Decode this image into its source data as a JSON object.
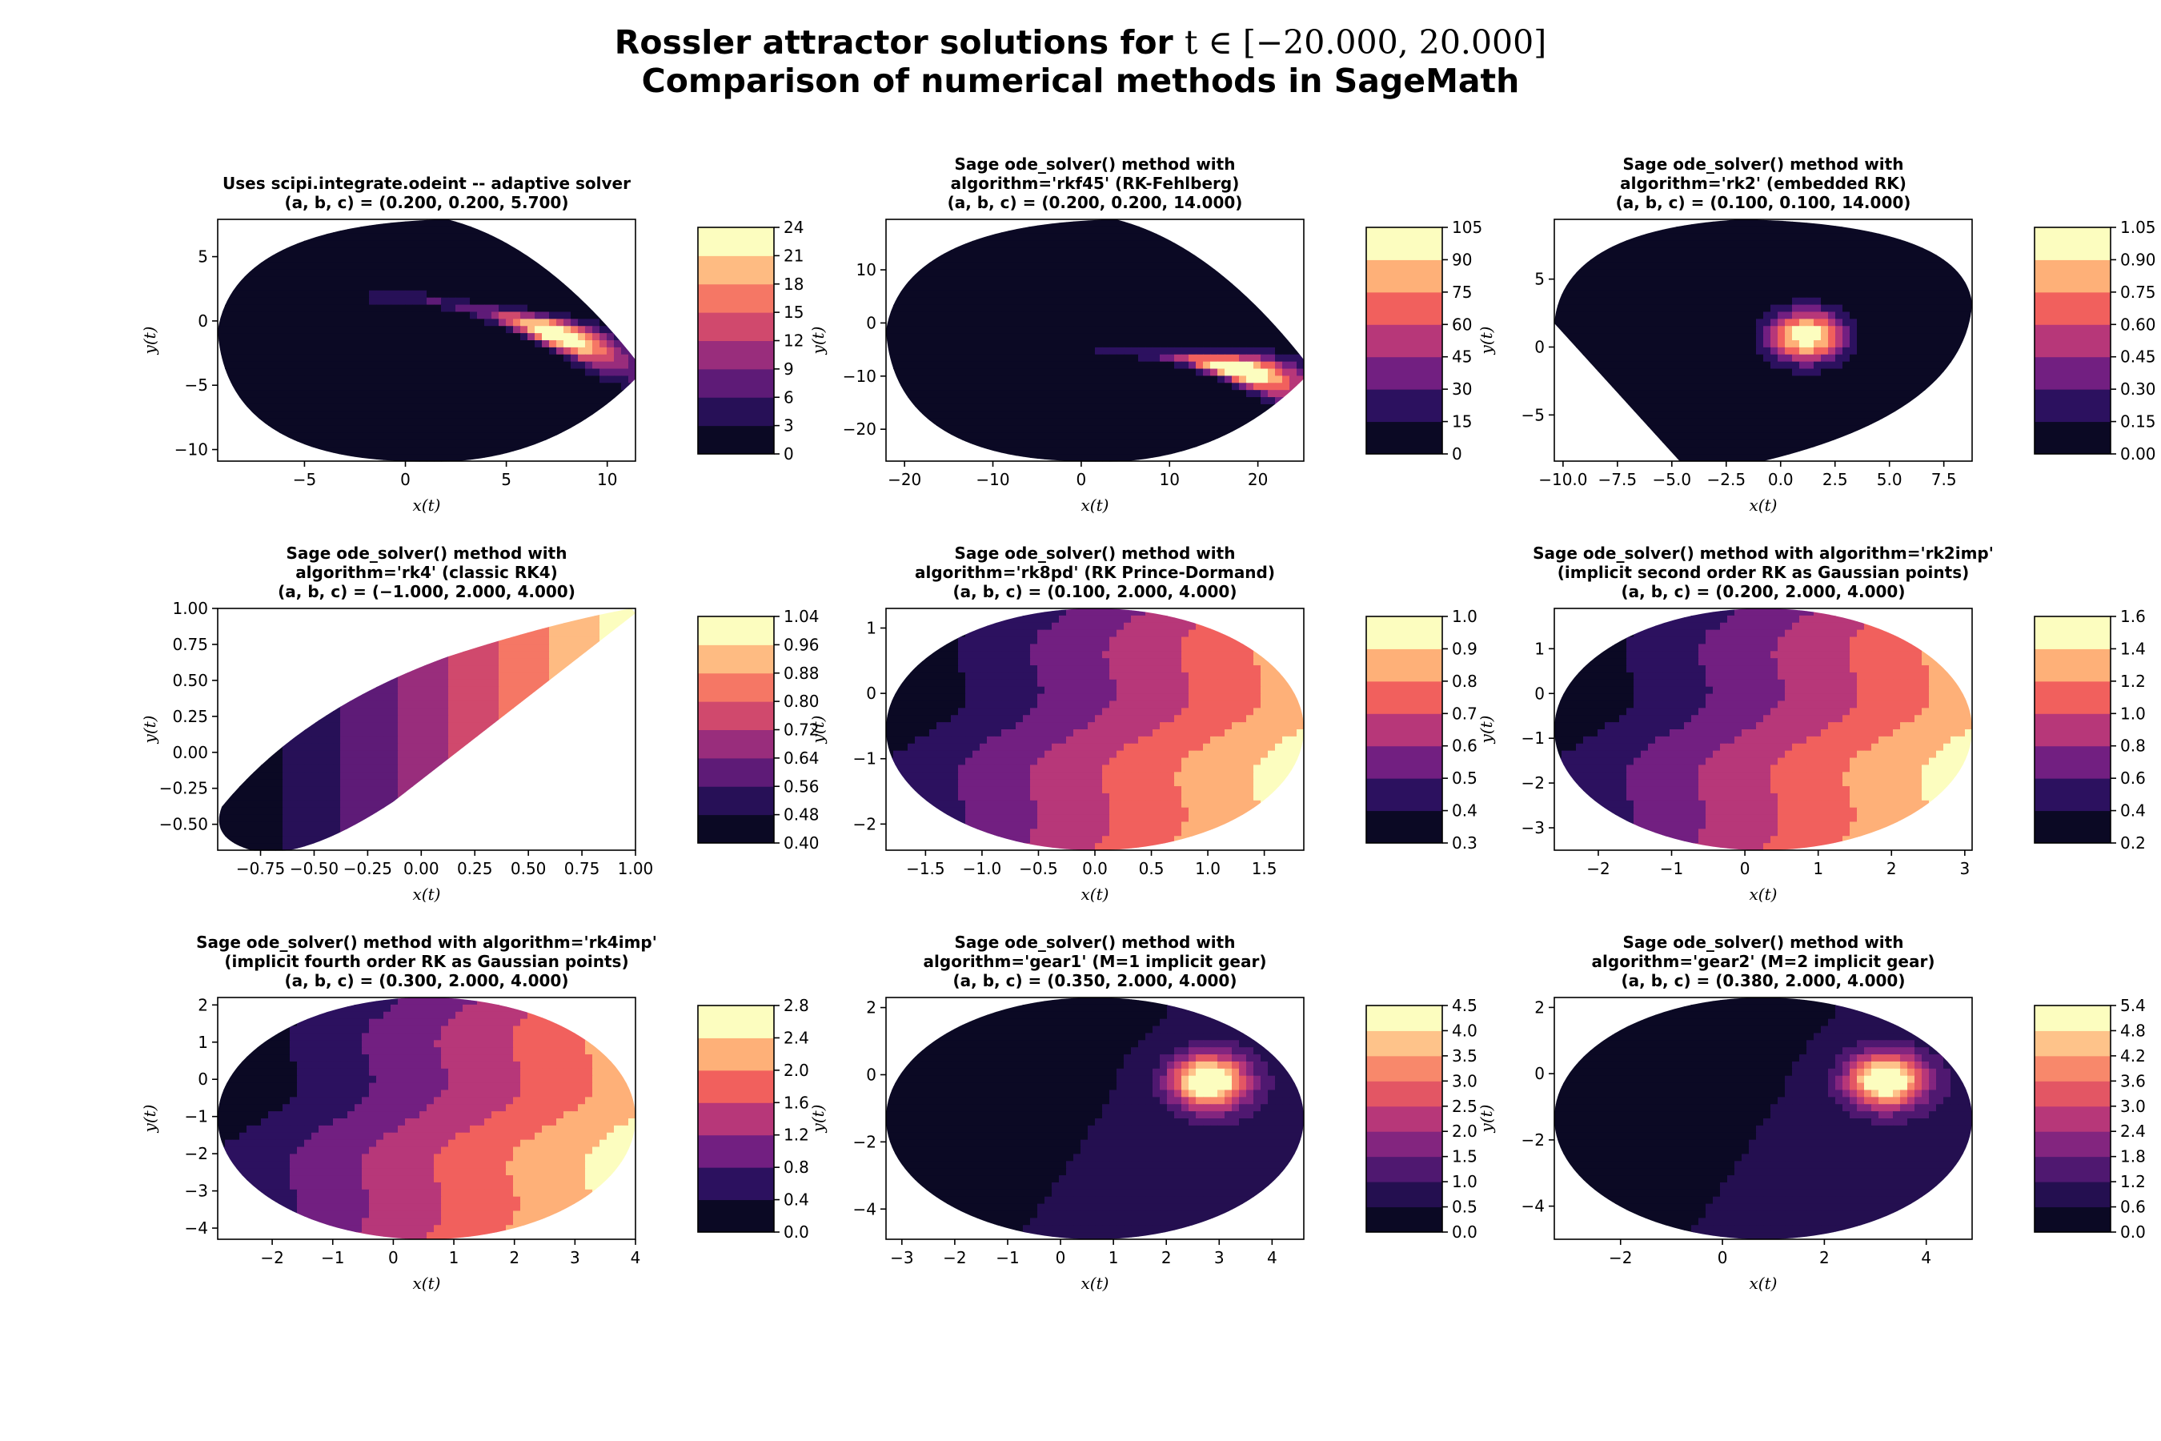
{
  "figure": {
    "title_line1_prefix": "Rossler attractor solutions for ",
    "title_line1_math": "t ∈ [−20.000, 20.000]",
    "title_line2": "Comparison of numerical methods in SageMath",
    "colormap": "magma",
    "colormap_stops": [
      "#0b0924",
      "#2c115f",
      "#721f81",
      "#b73779",
      "#f1605d",
      "#feb078",
      "#fcfdbf"
    ]
  },
  "chart_data": [
    {
      "type": "contourf",
      "title_lines": [
        "Uses scipi.integrate.odeint -- adaptive solver",
        "(a, b, c) = (0.200, 0.200, 5.700)"
      ],
      "xlabel": "x(t)",
      "ylabel": "y(t)",
      "xlim": [
        -9.3,
        11.4
      ],
      "ylim": [
        -10.9,
        7.9
      ],
      "xticks": [
        "−5",
        "0",
        "5",
        "10"
      ],
      "xtick_values": [
        -5,
        0,
        5,
        10
      ],
      "yticks": [
        "−10",
        "−5",
        "0",
        "5"
      ],
      "ytick_values": [
        -10,
        -5,
        0,
        5
      ],
      "levels": [
        0,
        3,
        6,
        9,
        12,
        15,
        18,
        21,
        24
      ],
      "colorbar_ticks": [
        "0",
        "3",
        "6",
        "9",
        "12",
        "15",
        "18",
        "21",
        "24"
      ],
      "region": "ellipse-with-right-wedge",
      "feature": {
        "kind": "ridge",
        "from": [
          -1.3,
          2.0
        ],
        "to": [
          11.4,
          -3.5
        ],
        "peak": [
          7.5,
          0.8
        ]
      }
    },
    {
      "type": "contourf",
      "title_lines": [
        "Sage ode_solver() method with",
        "algorithm='rkf45' (RK-Fehlberg)",
        "(a, b, c) = (0.200, 0.200, 14.000)"
      ],
      "xlabel": "x(t)",
      "ylabel": "y(t)",
      "xlim": [
        -22.1,
        25.2
      ],
      "ylim": [
        -26.0,
        19.5
      ],
      "xticks": [
        "−20",
        "−10",
        "0",
        "10",
        "20"
      ],
      "xtick_values": [
        -20,
        -10,
        0,
        10,
        20
      ],
      "yticks": [
        "−20",
        "−10",
        "0",
        "10"
      ],
      "ytick_values": [
        -20,
        -10,
        0,
        10
      ],
      "levels": [
        0,
        15,
        30,
        45,
        60,
        75,
        90,
        105
      ],
      "colorbar_ticks": [
        "0",
        "15",
        "30",
        "45",
        "60",
        "75",
        "90",
        "105"
      ],
      "region": "ellipse-with-right-wedge",
      "feature": {
        "kind": "ridge",
        "from": [
          2.5,
          -5.0
        ],
        "to": [
          25.2,
          -12.0
        ],
        "peak": [
          18.0,
          -7.5
        ]
      }
    },
    {
      "type": "contourf",
      "title_lines": [
        "Sage ode_solver() method with",
        "algorithm='rk2' (embedded RK)",
        "(a, b, c) = (0.100, 0.100, 14.000)"
      ],
      "xlabel": "x(t)",
      "ylabel": "y(t)",
      "xlim": [
        -10.4,
        8.8
      ],
      "ylim": [
        -8.4,
        9.4
      ],
      "xticks": [
        "−10.0",
        "−7.5",
        "−5.0",
        "−2.5",
        "0.0",
        "2.5",
        "5.0",
        "7.5"
      ],
      "xtick_values": [
        -10,
        -7.5,
        -5,
        -2.5,
        0,
        2.5,
        5,
        7.5
      ],
      "yticks": [
        "−5",
        "0",
        "5"
      ],
      "ytick_values": [
        -5,
        0,
        5
      ],
      "levels": [
        0.0,
        0.15,
        0.3,
        0.45,
        0.6,
        0.75,
        0.9,
        1.05
      ],
      "colorbar_ticks": [
        "0.00",
        "0.15",
        "0.30",
        "0.45",
        "0.60",
        "0.75",
        "0.90",
        "1.05"
      ],
      "region": "ellipse-with-left-wedge",
      "feature": {
        "kind": "spot",
        "peak": [
          1.2,
          0.8
        ]
      }
    },
    {
      "type": "contourf",
      "title_lines": [
        "Sage ode_solver() method with",
        "algorithm='rk4' (classic RK4)",
        "(a, b, c) = (−1.000, 2.000, 4.000)"
      ],
      "xlabel": "x(t)",
      "ylabel": "y(t)",
      "xlim": [
        -0.95,
        1.0
      ],
      "ylim": [
        -0.68,
        1.0
      ],
      "xticks": [
        "−0.75",
        "−0.50",
        "−0.25",
        "0.00",
        "0.25",
        "0.50",
        "0.75",
        "1.00"
      ],
      "xtick_values": [
        -0.75,
        -0.5,
        -0.25,
        0,
        0.25,
        0.5,
        0.75,
        1.0
      ],
      "yticks": [
        "−0.50",
        "−0.25",
        "0.00",
        "0.25",
        "0.50",
        "0.75",
        "1.00"
      ],
      "ytick_values": [
        -0.5,
        -0.25,
        0,
        0.25,
        0.5,
        0.75,
        1.0
      ],
      "levels": [
        0.4,
        0.48,
        0.56,
        0.64,
        0.72,
        0.8,
        0.88,
        0.96,
        1.04
      ],
      "colorbar_ticks": [
        "0.40",
        "0.48",
        "0.56",
        "0.64",
        "0.72",
        "0.80",
        "0.88",
        "0.96",
        "1.04"
      ],
      "region": "tilted-band",
      "feature": {
        "kind": "gradient-x"
      }
    },
    {
      "type": "contourf",
      "title_lines": [
        "Sage ode_solver() method with",
        "algorithm='rk8pd' (RK Prince-Dormand)",
        "(a, b, c) = (0.100, 2.000, 4.000)"
      ],
      "xlabel": "x(t)",
      "ylabel": "y(t)",
      "xlim": [
        -1.85,
        1.85
      ],
      "ylim": [
        -2.4,
        1.3
      ],
      "xticks": [
        "−1.5",
        "−1.0",
        "−0.5",
        "0.0",
        "0.5",
        "1.0",
        "1.5"
      ],
      "xtick_values": [
        -1.5,
        -1.0,
        -0.5,
        0,
        0.5,
        1.0,
        1.5
      ],
      "yticks": [
        "−2",
        "−1",
        "0",
        "1"
      ],
      "ytick_values": [
        -2,
        -1,
        0,
        1
      ],
      "levels": [
        0.3,
        0.4,
        0.5,
        0.6,
        0.7,
        0.8,
        0.9,
        1.0
      ],
      "colorbar_ticks": [
        "0.3",
        "0.4",
        "0.5",
        "0.6",
        "0.7",
        "0.8",
        "0.9",
        "1.0"
      ],
      "region": "ellipse",
      "feature": {
        "kind": "gradient-diag"
      }
    },
    {
      "type": "contourf",
      "title_lines": [
        "Sage ode_solver() method with algorithm='rk2imp'",
        "(implicit second order RK as Gaussian points)",
        "(a, b, c) = (0.200, 2.000, 4.000)"
      ],
      "xlabel": "x(t)",
      "ylabel": "y(t)",
      "xlim": [
        -2.6,
        3.1
      ],
      "ylim": [
        -3.5,
        1.9
      ],
      "xticks": [
        "−2",
        "−1",
        "0",
        "1",
        "2",
        "3"
      ],
      "xtick_values": [
        -2,
        -1,
        0,
        1,
        2,
        3
      ],
      "yticks": [
        "−3",
        "−2",
        "−1",
        "0",
        "1"
      ],
      "ytick_values": [
        -3,
        -2,
        -1,
        0,
        1
      ],
      "levels": [
        0.2,
        0.4,
        0.6,
        0.8,
        1.0,
        1.2,
        1.4,
        1.6
      ],
      "colorbar_ticks": [
        "0.2",
        "0.4",
        "0.6",
        "0.8",
        "1.0",
        "1.2",
        "1.4",
        "1.6"
      ],
      "region": "ellipse",
      "feature": {
        "kind": "gradient-diag"
      }
    },
    {
      "type": "contourf",
      "title_lines": [
        "Sage ode_solver() method with algorithm='rk4imp'",
        "(implicit fourth order RK as Gaussian points)",
        "(a, b, c) = (0.300, 2.000, 4.000)"
      ],
      "xlabel": "x(t)",
      "ylabel": "y(t)",
      "xlim": [
        -2.9,
        4.0
      ],
      "ylim": [
        -4.3,
        2.2
      ],
      "xticks": [
        "−2",
        "−1",
        "0",
        "1",
        "2",
        "3",
        "4"
      ],
      "xtick_values": [
        -2,
        -1,
        0,
        1,
        2,
        3,
        4
      ],
      "yticks": [
        "−4",
        "−3",
        "−2",
        "−1",
        "0",
        "1",
        "2"
      ],
      "ytick_values": [
        -4,
        -3,
        -2,
        -1,
        0,
        1,
        2
      ],
      "levels": [
        0.0,
        0.4,
        0.8,
        1.2,
        1.6,
        2.0,
        2.4,
        2.8
      ],
      "colorbar_ticks": [
        "0.0",
        "0.4",
        "0.8",
        "1.2",
        "1.6",
        "2.0",
        "2.4",
        "2.8"
      ],
      "region": "ellipse",
      "feature": {
        "kind": "gradient-diag"
      }
    },
    {
      "type": "contourf",
      "title_lines": [
        "Sage ode_solver() method with",
        "algorithm='gear1' (M=1 implicit gear)",
        "(a, b, c) = (0.350, 2.000, 4.000)"
      ],
      "xlabel": "x(t)",
      "ylabel": "y(t)",
      "xlim": [
        -3.3,
        4.6
      ],
      "ylim": [
        -4.9,
        2.3
      ],
      "xticks": [
        "−3",
        "−2",
        "−1",
        "0",
        "1",
        "2",
        "3",
        "4"
      ],
      "xtick_values": [
        -3,
        -2,
        -1,
        0,
        1,
        2,
        3,
        4
      ],
      "yticks": [
        "−4",
        "−2",
        "0",
        "2"
      ],
      "ytick_values": [
        -4,
        -2,
        0,
        2
      ],
      "levels": [
        0.0,
        0.5,
        1.0,
        1.5,
        2.0,
        2.5,
        3.0,
        3.5,
        4.0,
        4.5
      ],
      "colorbar_ticks": [
        "0.0",
        "0.5",
        "1.0",
        "1.5",
        "2.0",
        "2.5",
        "3.0",
        "3.5",
        "4.0",
        "4.5"
      ],
      "region": "ellipse",
      "feature": {
        "kind": "spot",
        "peak": [
          2.8,
          -0.2
        ]
      }
    },
    {
      "type": "contourf",
      "title_lines": [
        "Sage ode_solver() method with",
        "algorithm='gear2' (M=2 implicit gear)",
        "(a, b, c) = (0.380, 2.000, 4.000)"
      ],
      "xlabel": "x(t)",
      "ylabel": "y(t)",
      "xlim": [
        -3.3,
        4.9
      ],
      "ylim": [
        -5.0,
        2.3
      ],
      "xticks": [
        "−2",
        "0",
        "2",
        "4"
      ],
      "xtick_values": [
        -2,
        0,
        2,
        4
      ],
      "yticks": [
        "−4",
        "−2",
        "0",
        "2"
      ],
      "ytick_values": [
        -4,
        -2,
        0,
        2
      ],
      "levels": [
        0.0,
        0.6,
        1.2,
        1.8,
        2.4,
        3.0,
        3.6,
        4.2,
        4.8,
        5.4
      ],
      "colorbar_ticks": [
        "0.0",
        "0.6",
        "1.2",
        "1.8",
        "2.4",
        "3.0",
        "3.6",
        "4.2",
        "4.8",
        "5.4"
      ],
      "region": "ellipse",
      "feature": {
        "kind": "spot",
        "peak": [
          3.2,
          -0.2
        ]
      }
    }
  ]
}
